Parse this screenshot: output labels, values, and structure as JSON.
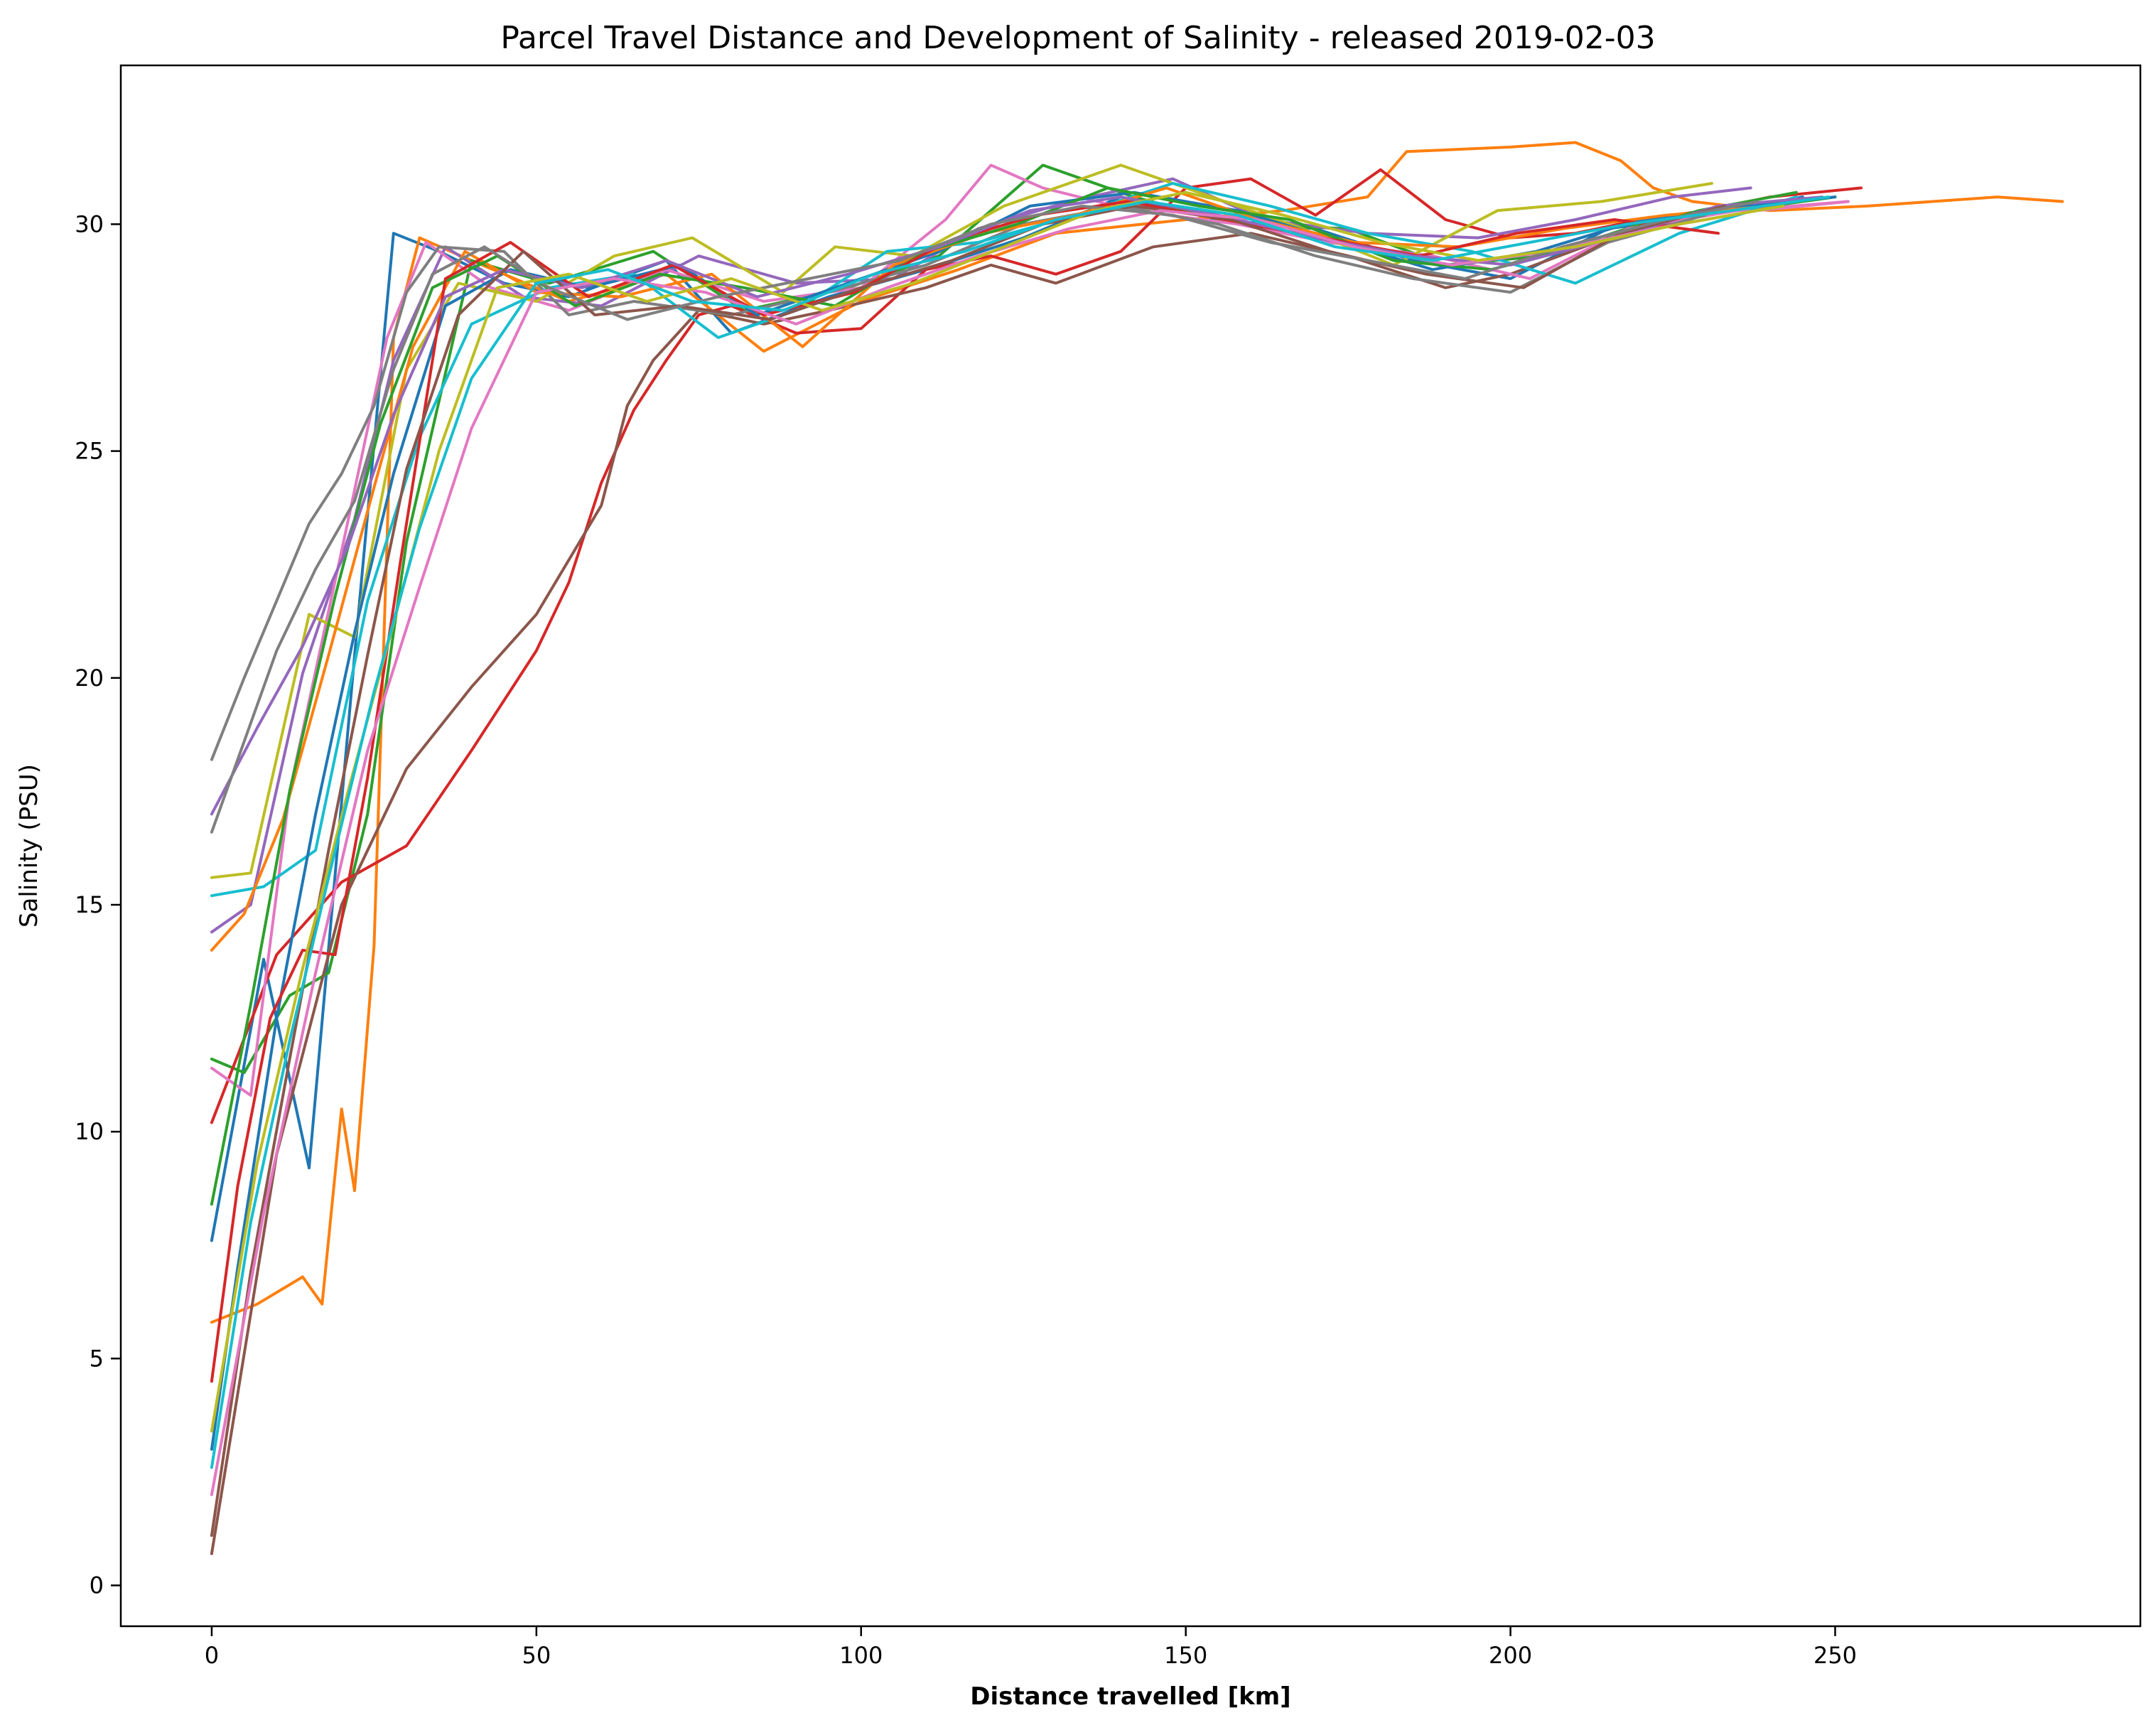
{
  "chart_data": {
    "type": "line",
    "title": "Parcel Travel Distance and Development of Salinity - released 2019-02-03",
    "xlabel": "Distance travelled [km]",
    "ylabel": "Salinity (PSU)",
    "xlim": [
      -14,
      297
    ],
    "ylim": [
      -0.9,
      33.5
    ],
    "xticks": [
      0,
      50,
      100,
      150,
      200,
      250
    ],
    "yticks": [
      0,
      5,
      10,
      15,
      20,
      25,
      30
    ],
    "grid": false,
    "legend": "none",
    "colors": [
      "#1f77b4",
      "#ff7f0e",
      "#2ca02c",
      "#d62728",
      "#9467bd",
      "#8c564b",
      "#e377c2",
      "#7f7f7f",
      "#bcbd22",
      "#17becf"
    ],
    "series": [
      {
        "x": [
          0,
          8,
          15,
          22,
          28,
          35,
          45,
          55,
          70,
          80,
          95,
          110,
          125,
          140,
          155,
          170,
          185,
          200,
          215,
          230,
          245
        ],
        "y": [
          7.6,
          13.8,
          9.2,
          20.5,
          29.8,
          29.4,
          28.7,
          28.4,
          29.2,
          27.6,
          28.4,
          29.0,
          29.7,
          30.6,
          30.1,
          29.9,
          29.2,
          28.8,
          29.9,
          30.2,
          30.6
        ]
      },
      {
        "x": [
          0,
          7,
          14,
          17,
          20,
          22,
          25,
          28,
          32,
          40,
          55,
          70,
          85,
          100,
          115,
          130,
          150,
          165,
          178,
          184,
          200,
          210,
          217,
          222,
          228,
          240,
          255,
          265,
          275,
          285
        ],
        "y": [
          5.8,
          6.2,
          6.8,
          6.2,
          10.5,
          8.7,
          14.1,
          27.5,
          29.7,
          29.2,
          28.3,
          28.9,
          27.2,
          28.3,
          29.0,
          29.8,
          30.1,
          30.3,
          30.6,
          31.6,
          31.7,
          31.8,
          31.4,
          30.8,
          30.5,
          30.3,
          30.4,
          30.5,
          30.6,
          30.5
        ]
      },
      {
        "x": [
          0,
          5,
          12,
          18,
          24,
          30,
          40,
          52,
          68,
          82,
          98,
          112,
          128,
          142,
          158,
          175,
          190,
          205,
          220,
          235,
          250
        ],
        "y": [
          11.6,
          11.3,
          13.0,
          13.5,
          17.0,
          23.0,
          29.2,
          28.7,
          29.4,
          28.1,
          28.6,
          29.3,
          31.3,
          30.6,
          30.0,
          29.9,
          29.1,
          29.3,
          30.0,
          30.3,
          30.6
        ]
      },
      {
        "x": [
          0,
          10,
          20,
          30,
          40,
          50,
          55,
          60,
          65,
          70,
          75,
          80,
          90,
          100,
          110,
          120,
          130,
          140,
          150,
          160,
          170,
          180,
          190,
          200,
          210,
          220,
          230,
          240,
          254
        ],
        "y": [
          10.2,
          13.9,
          15.5,
          16.3,
          18.4,
          20.6,
          22.1,
          24.3,
          25.9,
          27.0,
          28.0,
          28.2,
          27.6,
          27.7,
          29.0,
          29.3,
          28.9,
          29.4,
          30.8,
          31.0,
          30.2,
          31.2,
          30.1,
          29.7,
          29.8,
          30.1,
          30.3,
          30.6,
          30.8
        ]
      },
      {
        "x": [
          0,
          6,
          14,
          22,
          28,
          36,
          48,
          60,
          75,
          90,
          105,
          118,
          132,
          148,
          162,
          178,
          195,
          210,
          225,
          237
        ],
        "y": [
          14.4,
          15.0,
          20.1,
          23.5,
          27.0,
          29.5,
          28.4,
          28.2,
          29.3,
          28.7,
          28.8,
          29.9,
          30.5,
          31.0,
          30.1,
          29.8,
          29.7,
          30.1,
          30.6,
          30.8
        ]
      },
      {
        "x": [
          0,
          10,
          20,
          30,
          40,
          50,
          60,
          64,
          68,
          75,
          85,
          95,
          110,
          120,
          130,
          145,
          160,
          175,
          190,
          200,
          215,
          230,
          243
        ],
        "y": [
          0.7,
          9.5,
          15.0,
          18.0,
          19.8,
          21.4,
          23.8,
          26.0,
          27.0,
          28.1,
          27.8,
          28.1,
          28.6,
          29.1,
          28.7,
          29.5,
          29.8,
          29.3,
          28.6,
          28.9,
          29.7,
          30.2,
          30.5
        ]
      },
      {
        "x": [
          0,
          6,
          12,
          20,
          27,
          33,
          43,
          55,
          70,
          85,
          100,
          113,
          120,
          128,
          142,
          158,
          172,
          188,
          203,
          218,
          235,
          252
        ],
        "y": [
          11.4,
          10.8,
          17.5,
          22.8,
          27.5,
          29.6,
          28.6,
          28.1,
          29.0,
          28.3,
          28.6,
          30.1,
          31.3,
          30.8,
          30.3,
          30.0,
          29.6,
          29.3,
          28.8,
          29.9,
          30.3,
          30.5
        ]
      },
      {
        "x": [
          0,
          5,
          10,
          15,
          20,
          25,
          30,
          35,
          45,
          55,
          65,
          80,
          95,
          110,
          125,
          140,
          155,
          170,
          185,
          200,
          215,
          230
        ],
        "y": [
          18.2,
          20.0,
          21.7,
          23.4,
          24.5,
          26.0,
          28.5,
          29.5,
          29.4,
          28.0,
          28.3,
          28.0,
          28.5,
          29.1,
          30.0,
          30.4,
          30.0,
          29.3,
          28.8,
          28.5,
          29.6,
          30.2
        ]
      },
      {
        "x": [
          0,
          6,
          15,
          22,
          30,
          38,
          50,
          62,
          74,
          88,
          96,
          108,
          122,
          140,
          154,
          168,
          182,
          198,
          214,
          231
        ],
        "y": [
          15.6,
          15.7,
          21.4,
          20.9,
          26.8,
          28.7,
          28.3,
          29.3,
          29.7,
          28.5,
          29.5,
          29.3,
          30.4,
          31.3,
          30.6,
          29.9,
          29.1,
          30.3,
          30.5,
          30.9
        ]
      },
      {
        "x": [
          0,
          8,
          16,
          24,
          32,
          40,
          52,
          65,
          78,
          90,
          104,
          118,
          133,
          148,
          163,
          178,
          194,
          210,
          226,
          244
        ],
        "y": [
          15.2,
          15.4,
          16.2,
          21.7,
          25.3,
          27.8,
          28.6,
          28.9,
          27.5,
          28.1,
          29.4,
          29.6,
          30.2,
          30.9,
          30.4,
          29.8,
          29.4,
          28.7,
          29.8,
          30.6
        ]
      },
      {
        "x": [
          0,
          4,
          10,
          16,
          22,
          28,
          36,
          46,
          58,
          72,
          84,
          98,
          112,
          126,
          142,
          158,
          172,
          188,
          204,
          220,
          236,
          250
        ],
        "y": [
          3.0,
          7.0,
          12.5,
          17.0,
          21.0,
          24.5,
          28.2,
          29.0,
          28.6,
          29.1,
          28.0,
          28.7,
          29.4,
          30.4,
          30.7,
          30.3,
          29.7,
          29.0,
          29.4,
          30.1,
          30.4,
          30.6
        ]
      },
      {
        "x": [
          0,
          5,
          11,
          18,
          25,
          31,
          39,
          50,
          63,
          77,
          91,
          105,
          119,
          133,
          147,
          161,
          176,
          192,
          208,
          224,
          240
        ],
        "y": [
          14.0,
          14.8,
          16.9,
          20.5,
          24.2,
          27.3,
          29.4,
          28.5,
          28.4,
          28.9,
          27.3,
          29.1,
          29.8,
          30.2,
          30.8,
          30.1,
          29.6,
          29.5,
          29.9,
          30.2,
          30.4
        ]
      },
      {
        "x": [
          0,
          6,
          12,
          19,
          26,
          34,
          44,
          56,
          69,
          82,
          96,
          110,
          124,
          138,
          152,
          166,
          182,
          197,
          213,
          229,
          244
        ],
        "y": [
          8.4,
          12.8,
          17.5,
          21.8,
          25.6,
          28.6,
          29.3,
          28.2,
          28.9,
          28.6,
          28.2,
          29.4,
          30.0,
          30.8,
          30.4,
          30.1,
          29.2,
          29.0,
          29.6,
          30.3,
          30.7
        ]
      },
      {
        "x": [
          0,
          4,
          9,
          14,
          19,
          24,
          29,
          36,
          46,
          58,
          71,
          85,
          99,
          113,
          127,
          141,
          156,
          171,
          186,
          201,
          216,
          232
        ],
        "y": [
          4.5,
          8.8,
          12.5,
          14.0,
          13.9,
          17.8,
          22.5,
          28.8,
          29.6,
          28.4,
          29.1,
          28.0,
          28.5,
          29.6,
          30.2,
          30.5,
          30.1,
          29.7,
          29.3,
          29.8,
          30.1,
          29.8
        ]
      },
      {
        "x": [
          0,
          7,
          14,
          21,
          28,
          36,
          45,
          57,
          70,
          84,
          98,
          112,
          126,
          140,
          155,
          170,
          185,
          200,
          216,
          232,
          248
        ],
        "y": [
          17.0,
          18.9,
          20.7,
          22.9,
          25.8,
          28.4,
          29.0,
          28.6,
          29.2,
          28.4,
          28.9,
          29.5,
          30.3,
          30.6,
          30.2,
          29.7,
          29.3,
          29.1,
          29.7,
          30.4,
          30.6
        ]
      },
      {
        "x": [
          0,
          6,
          12,
          18,
          24,
          30,
          38,
          48,
          59,
          72,
          86,
          100,
          114,
          128,
          142,
          157,
          172,
          187,
          202,
          217,
          233
        ],
        "y": [
          1.1,
          6.9,
          11.6,
          16.2,
          20.5,
          24.6,
          28.0,
          29.4,
          28.0,
          28.2,
          27.9,
          28.6,
          29.2,
          30.0,
          30.4,
          30.1,
          29.4,
          28.9,
          28.6,
          29.8,
          30.4
        ]
      },
      {
        "x": [
          0,
          8,
          16,
          24,
          32,
          40,
          50,
          62,
          76,
          90,
          104,
          118,
          132,
          146,
          161,
          176,
          191,
          206,
          222,
          238,
          252
        ],
        "y": [
          2.0,
          8.2,
          13.5,
          18.4,
          22.0,
          25.5,
          28.5,
          28.8,
          28.5,
          27.8,
          28.6,
          29.3,
          29.9,
          30.3,
          30.1,
          29.5,
          29.1,
          29.4,
          29.9,
          30.3,
          30.5
        ]
      },
      {
        "x": [
          0,
          5,
          10,
          16,
          22,
          28,
          34,
          42,
          52,
          64,
          78,
          92,
          106,
          120,
          134,
          148,
          163,
          178,
          193,
          208,
          224,
          238
        ],
        "y": [
          16.6,
          18.6,
          20.6,
          22.4,
          23.9,
          26.8,
          28.9,
          29.5,
          28.6,
          27.9,
          28.4,
          28.8,
          29.2,
          30.0,
          30.4,
          30.2,
          29.6,
          29.2,
          28.8,
          29.5,
          30.1,
          30.5
        ]
      },
      {
        "x": [
          0,
          7,
          14,
          21,
          28,
          35,
          44,
          55,
          67,
          80,
          94,
          108,
          122,
          136,
          150,
          165,
          180,
          195,
          210,
          226,
          242
        ],
        "y": [
          3.4,
          9.3,
          13.6,
          17.5,
          21.2,
          25.0,
          28.6,
          28.9,
          28.3,
          28.8,
          28.1,
          28.7,
          29.5,
          30.3,
          30.7,
          30.2,
          29.6,
          29.2,
          29.5,
          30.0,
          30.4
        ]
      },
      {
        "x": [
          0,
          6,
          12,
          18,
          25,
          32,
          40,
          50,
          61,
          74,
          88,
          102,
          116,
          130,
          144,
          158,
          173,
          188,
          203,
          218,
          234,
          249
        ],
        "y": [
          2.6,
          8.0,
          12.0,
          15.6,
          19.7,
          23.3,
          26.6,
          28.7,
          29.0,
          28.3,
          28.1,
          28.9,
          29.4,
          30.1,
          30.5,
          30.2,
          29.5,
          29.2,
          29.6,
          30.0,
          30.3,
          30.6
        ]
      }
    ]
  }
}
